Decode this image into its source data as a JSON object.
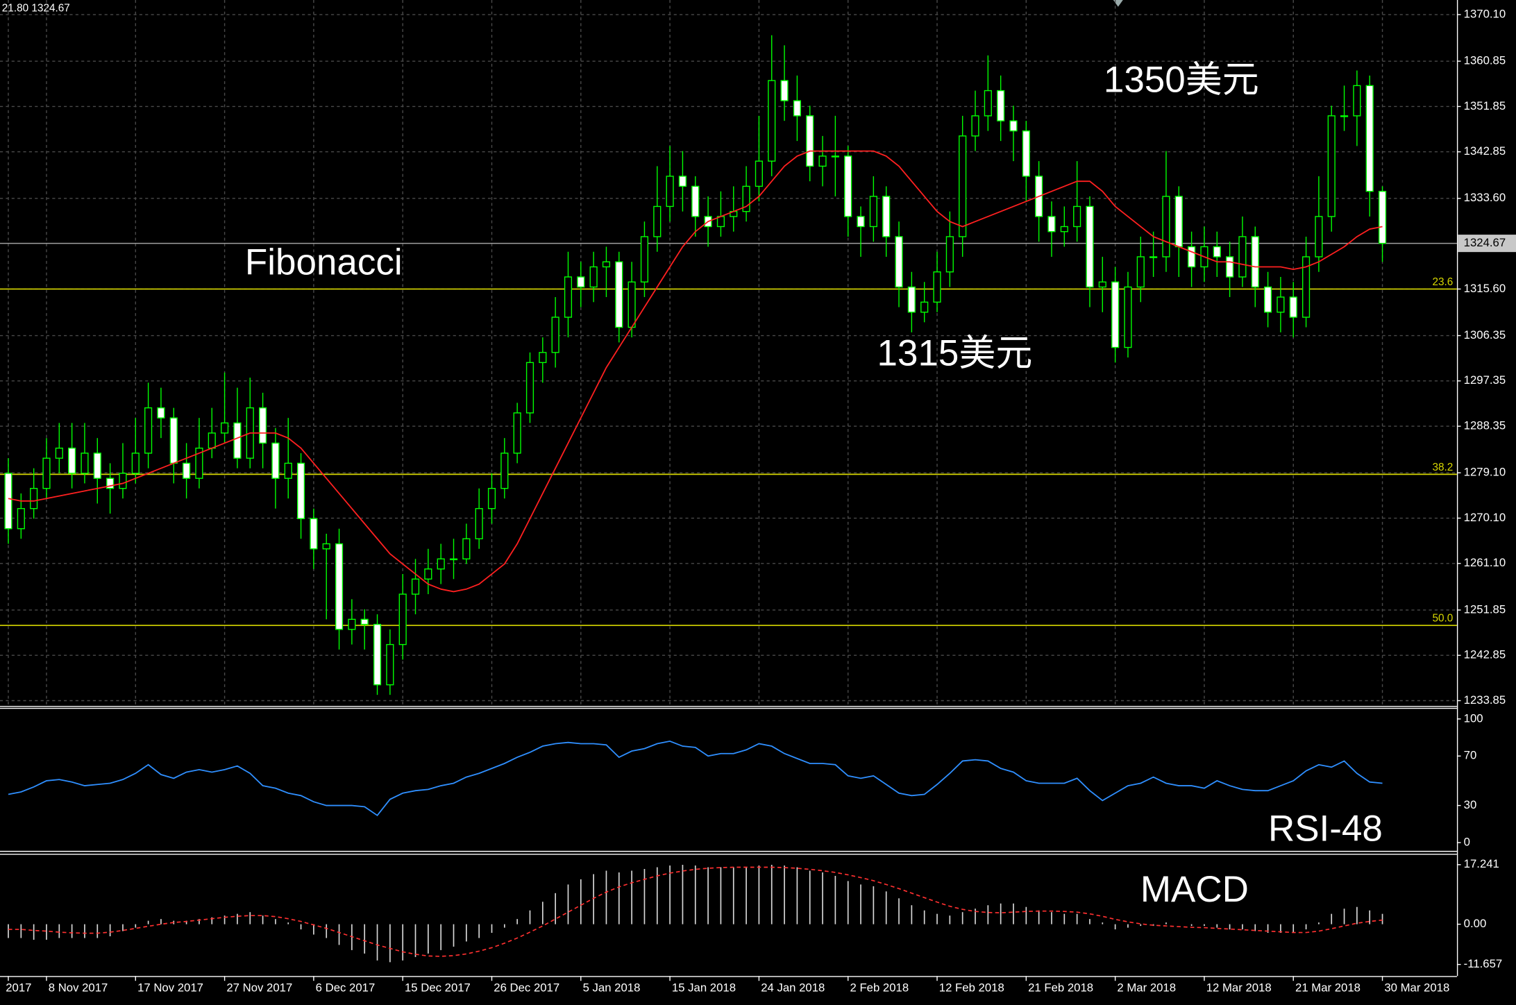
{
  "chart_data": [
    {
      "type": "candlestick",
      "header": "21.80 1324.67",
      "annotations": [
        "Fibonacci",
        "1350美元",
        "1315美元"
      ],
      "x": [
        "2017",
        null,
        null,
        "8 Nov 2017",
        null,
        null,
        null,
        null,
        null,
        null,
        "17 Nov 2017",
        null,
        null,
        null,
        null,
        null,
        null,
        "27 Nov 2017",
        null,
        null,
        null,
        null,
        null,
        null,
        "6 Dec 2017",
        null,
        null,
        null,
        null,
        null,
        null,
        "15 Dec 2017",
        null,
        null,
        null,
        null,
        null,
        null,
        "26 Dec 2017",
        null,
        null,
        null,
        null,
        null,
        null,
        "5 Jan 2018",
        null,
        null,
        null,
        null,
        null,
        null,
        "15 Jan 2018",
        null,
        null,
        null,
        null,
        null,
        null,
        "24 Jan 2018",
        null,
        null,
        null,
        null,
        null,
        null,
        "2 Feb 2018",
        null,
        null,
        null,
        null,
        null,
        null,
        "12 Feb 2018",
        null,
        null,
        null,
        null,
        null,
        null,
        "21 Feb 2018",
        null,
        null,
        null,
        null,
        null,
        null,
        "2 Mar 2018",
        null,
        null,
        null,
        null,
        null,
        null,
        "12 Mar 2018",
        null,
        null,
        null,
        null,
        null,
        null,
        "21 Mar 2018",
        null,
        null,
        null,
        null,
        null,
        null,
        "30 Mar 2018"
      ],
      "open": [
        1279,
        1268,
        1272,
        1276,
        1282,
        1284,
        1279,
        1283,
        1278,
        1276,
        1279,
        1283,
        1292,
        1290,
        1281,
        1278,
        1284,
        1287,
        1289,
        1282,
        1292,
        1285,
        1278,
        1281,
        1270,
        1264,
        1265,
        1248,
        1250,
        1249,
        1237,
        1245,
        1255,
        1258,
        1260,
        1262,
        1262,
        1266,
        1272,
        1276,
        1283,
        1291,
        1301,
        1303,
        1310,
        1318,
        1316,
        1320,
        1321,
        1308,
        1317,
        1326,
        1332,
        1338,
        1336,
        1330,
        1328,
        1330,
        1331,
        1336,
        1341,
        1357,
        1353,
        1350,
        1340,
        1342,
        1342,
        1330,
        1328,
        1334,
        1326,
        1316,
        1311,
        1313,
        1319,
        1326,
        1346,
        1350,
        1355,
        1349,
        1347,
        1338,
        1330,
        1327,
        1328,
        1332,
        1316,
        1317,
        1304,
        1316,
        1322,
        1322,
        1334,
        1324,
        1320,
        1324,
        1322,
        1318,
        1326,
        1316,
        1311,
        1314,
        1310,
        1322,
        1330,
        1350,
        1350,
        1356,
        1335
      ],
      "high": [
        1282,
        1275,
        1280,
        1286,
        1289,
        1289,
        1289,
        1286,
        1281,
        1285,
        1290,
        1297,
        1296,
        1292,
        1285,
        1290,
        1292,
        1299,
        1296,
        1298,
        1295,
        1288,
        1290,
        1283,
        1272,
        1267,
        1268,
        1254,
        1252,
        1251,
        1248,
        1259,
        1262,
        1264,
        1265,
        1266,
        1269,
        1276,
        1279,
        1286,
        1293,
        1303,
        1306,
        1314,
        1323,
        1321,
        1323,
        1324,
        1323,
        1321,
        1329,
        1340,
        1344,
        1343,
        1338,
        1334,
        1335,
        1336,
        1340,
        1350,
        1366,
        1364,
        1358,
        1352,
        1346,
        1350,
        1344,
        1332,
        1338,
        1336,
        1329,
        1319,
        1317,
        1323,
        1331,
        1350,
        1355,
        1362,
        1358,
        1352,
        1349,
        1341,
        1333,
        1332,
        1341,
        1334,
        1322,
        1320,
        1319,
        1326,
        1327,
        1343,
        1336,
        1327,
        1328,
        1327,
        1325,
        1330,
        1328,
        1319,
        1318,
        1317,
        1326,
        1338,
        1352,
        1356,
        1359,
        1358,
        1336
      ],
      "low": [
        1265,
        1266,
        1270,
        1274,
        1279,
        1276,
        1277,
        1273,
        1271,
        1274,
        1277,
        1280,
        1286,
        1277,
        1274,
        1276,
        1282,
        1285,
        1280,
        1280,
        1280,
        1272,
        1274,
        1266,
        1260,
        1250,
        1244,
        1245,
        1244,
        1235,
        1235,
        1242,
        1251,
        1255,
        1257,
        1258,
        1261,
        1264,
        1269,
        1274,
        1281,
        1289,
        1297,
        1300,
        1306,
        1312,
        1313,
        1314,
        1305,
        1306,
        1314,
        1323,
        1329,
        1331,
        1326,
        1324,
        1326,
        1327,
        1329,
        1333,
        1338,
        1349,
        1345,
        1337,
        1336,
        1334,
        1326,
        1322,
        1325,
        1322,
        1312,
        1307,
        1309,
        1311,
        1316,
        1322,
        1343,
        1347,
        1345,
        1341,
        1333,
        1325,
        1322,
        1324,
        1325,
        1312,
        1311,
        1301,
        1302,
        1313,
        1318,
        1319,
        1318,
        1316,
        1317,
        1318,
        1314,
        1316,
        1312,
        1308,
        1307,
        1306,
        1308,
        1319,
        1327,
        1347,
        1344,
        1330,
        1321
      ],
      "close": [
        1268,
        1272,
        1276,
        1282,
        1284,
        1279,
        1283,
        1278,
        1276,
        1279,
        1283,
        1292,
        1290,
        1281,
        1278,
        1284,
        1287,
        1289,
        1282,
        1292,
        1285,
        1278,
        1281,
        1270,
        1264,
        1265,
        1248,
        1250,
        1249,
        1237,
        1245,
        1255,
        1258,
        1260,
        1262,
        1262,
        1266,
        1272,
        1276,
        1283,
        1291,
        1301,
        1303,
        1310,
        1318,
        1316,
        1320,
        1321,
        1308,
        1317,
        1326,
        1332,
        1338,
        1336,
        1330,
        1328,
        1330,
        1331,
        1336,
        1341,
        1357,
        1353,
        1350,
        1340,
        1342,
        1342,
        1330,
        1328,
        1334,
        1326,
        1316,
        1311,
        1313,
        1319,
        1326,
        1346,
        1350,
        1355,
        1349,
        1347,
        1338,
        1330,
        1327,
        1328,
        1332,
        1316,
        1317,
        1304,
        1316,
        1322,
        1322,
        1334,
        1324,
        1320,
        1324,
        1322,
        1318,
        1326,
        1316,
        1311,
        1314,
        1310,
        1322,
        1330,
        1350,
        1350,
        1356,
        1335,
        1324.67
      ],
      "up_fill": "#000000",
      "down_fill": "#ffffff",
      "candle_color": "#00ff00",
      "ma": {
        "color": "#ff2020",
        "values": [
          1274,
          1273.5,
          1273.5,
          1274,
          1274.5,
          1275,
          1275.5,
          1276,
          1276.5,
          1277,
          1278,
          1279,
          1280,
          1281,
          1282,
          1283,
          1284,
          1285,
          1286,
          1287,
          1287,
          1287,
          1286,
          1284,
          1281,
          1278,
          1275,
          1272,
          1269,
          1266,
          1263,
          1261,
          1259,
          1257,
          1256,
          1255.5,
          1256,
          1257,
          1259,
          1261,
          1265,
          1270,
          1275,
          1280,
          1285,
          1290,
          1295,
          1300,
          1304,
          1308,
          1312,
          1316,
          1320,
          1324,
          1327,
          1329,
          1330,
          1331,
          1332,
          1334,
          1337,
          1340,
          1342,
          1343,
          1343,
          1343,
          1343,
          1343,
          1343,
          1342,
          1340,
          1337,
          1334,
          1331,
          1329,
          1328,
          1329,
          1330,
          1331,
          1332,
          1333,
          1334,
          1335,
          1336,
          1337,
          1337,
          1335,
          1332,
          1330,
          1328,
          1326,
          1325,
          1324,
          1323,
          1322,
          1321,
          1321,
          1320.5,
          1320,
          1320,
          1320,
          1319.5,
          1320,
          1321,
          1322.5,
          1324,
          1326,
          1327.5,
          1328
        ]
      },
      "levels": [
        {
          "value": 1315.6,
          "label": "23.6"
        },
        {
          "value": 1278.8,
          "label": "38.2"
        },
        {
          "value": 1248.8,
          "label": "50.0"
        }
      ],
      "level_color": "#d8d800",
      "last": 1324.67,
      "ylim": [
        1232.9,
        1373.0
      ],
      "yticks": [
        {
          "value": 1370.1,
          "label": "1370.10"
        },
        1360.85,
        1351.85,
        1342.85,
        {
          "value": 1333.6,
          "label": "1333.60"
        },
        {
          "value": 1315.6,
          "label": "1315.60"
        },
        1306.35,
        1297.35,
        1288.35,
        {
          "value": 1279.1,
          "label": "1279.10"
        },
        {
          "value": 1270.1,
          "label": "1270.10"
        },
        {
          "value": 1261.1,
          "label": "1261.10"
        },
        1251.85,
        1242.85,
        1233.85
      ],
      "grid": true
    },
    {
      "type": "line",
      "label": "RSI-48",
      "color": "#2f8fff",
      "values": [
        39,
        41,
        45,
        50,
        51,
        49,
        46,
        47,
        48,
        51,
        56,
        63,
        55,
        52,
        57,
        59,
        57,
        59,
        62,
        56,
        46,
        44,
        40,
        38,
        33,
        30,
        30,
        30,
        29,
        22,
        35,
        40,
        42,
        43,
        46,
        48,
        53,
        56,
        60,
        64,
        69,
        73,
        78,
        80,
        81,
        80,
        80,
        79,
        69,
        74,
        76,
        80,
        82,
        78,
        77,
        70,
        72,
        72,
        75,
        80,
        78,
        72,
        68,
        64,
        64,
        63,
        54,
        52,
        54,
        47,
        40,
        38,
        39,
        47,
        56,
        66,
        67,
        66,
        60,
        57,
        50,
        48,
        48,
        48,
        52,
        42,
        34,
        40,
        46,
        48,
        53,
        48,
        46,
        46,
        44,
        50,
        46,
        43,
        42,
        42,
        46,
        50,
        58,
        63,
        61,
        66,
        56,
        49,
        48
      ],
      "ylim": [
        -6.3,
        107.8
      ],
      "yticks": [
        100,
        70,
        30,
        0
      ],
      "grid": false
    },
    {
      "type": "bar",
      "label": "MACD",
      "color": "#d8d8d8",
      "values": [
        -4,
        -4,
        -4.5,
        -4.5,
        -4,
        -4,
        -4,
        -4,
        -3.5,
        -2,
        -1,
        1,
        1.5,
        1,
        1,
        1.5,
        2,
        2.5,
        3,
        3.5,
        2.5,
        1.5,
        0.5,
        -1.5,
        -3,
        -4,
        -6,
        -7.5,
        -8.5,
        -10.5,
        -11,
        -10.5,
        -9.5,
        -8.5,
        -7.5,
        -6.5,
        -5,
        -4,
        -2.5,
        -1,
        1.5,
        4,
        6.5,
        9,
        11.5,
        13,
        14.5,
        15.5,
        15,
        15.5,
        16,
        16.5,
        17,
        17.2,
        17,
        16.5,
        16.5,
        16.5,
        16.5,
        17,
        17.2,
        17,
        16.5,
        15.5,
        15,
        14,
        12.5,
        11.5,
        11,
        9.5,
        7.5,
        5.5,
        4,
        3,
        2.5,
        3.5,
        4.5,
        5.5,
        6,
        6,
        5,
        4,
        3.5,
        3,
        3,
        1.5,
        0.5,
        -1.5,
        -1,
        -0.5,
        -0.5,
        0.5,
        0,
        -0.5,
        -0.5,
        -1,
        -1.5,
        -1.5,
        -2,
        -2.5,
        -2.5,
        -2.5,
        -1.5,
        0.5,
        3,
        4.5,
        5,
        4,
        3
      ],
      "signal": {
        "color": "#ff3030",
        "values": [
          -1.5,
          -1.5,
          -1.8,
          -2,
          -2.3,
          -2.5,
          -2.6,
          -2.6,
          -2.3,
          -1.8,
          -1.2,
          -0.6,
          0,
          0.5,
          0.8,
          1.2,
          1.6,
          2,
          2.3,
          2.5,
          2.5,
          2.2,
          1.6,
          0.8,
          -0.2,
          -1.2,
          -2.4,
          -3.6,
          -4.8,
          -6,
          -7,
          -8,
          -8.7,
          -9.2,
          -9.3,
          -9.1,
          -8.6,
          -7.8,
          -6.8,
          -5.5,
          -4,
          -2.3,
          -0.5,
          1.5,
          3.5,
          5.5,
          7.5,
          9.3,
          10.8,
          12,
          13,
          14,
          14.8,
          15.4,
          15.9,
          16.2,
          16.4,
          16.5,
          16.5,
          16.5,
          16.5,
          16.4,
          16.2,
          15.9,
          15.5,
          15,
          14.3,
          13.5,
          12.6,
          11.5,
          10.3,
          9,
          7.7,
          6.4,
          5.2,
          4.3,
          3.7,
          3.4,
          3.3,
          3.5,
          3.7,
          3.8,
          3.8,
          3.7,
          3.5,
          3,
          2.3,
          1.4,
          0.7,
          0.1,
          -0.3,
          -0.5,
          -0.7,
          -0.9,
          -1,
          -1.2,
          -1.4,
          -1.6,
          -1.8,
          -2,
          -2.2,
          -2.4,
          -2.4,
          -2,
          -1.3,
          -0.5,
          0.3,
          0.8,
          1.2
        ]
      },
      "ylim": [
        -15,
        19.7
      ],
      "yticks": [
        17.241,
        {
          "value": 0,
          "label": "0.00"
        },
        -11.657
      ],
      "grid": false
    }
  ]
}
